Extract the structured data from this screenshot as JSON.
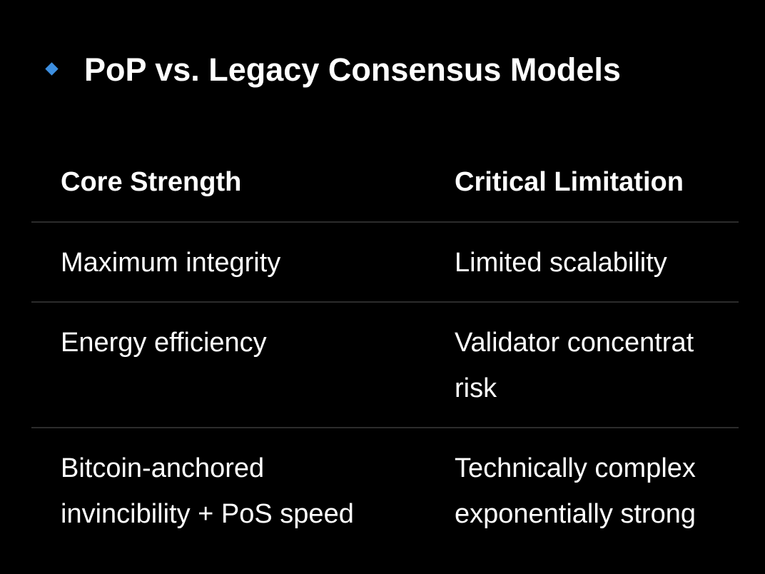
{
  "title": "PoP vs. Legacy Consensus Models",
  "table": {
    "header": [
      "Core Strength",
      "Critical Limitation"
    ],
    "rows": [
      [
        [
          "Maximum integrity"
        ],
        [
          "Limited scalability"
        ]
      ],
      [
        [
          "Energy efficiency"
        ],
        [
          "Validator concentrat",
          "risk"
        ]
      ],
      [
        [
          "Bitcoin-anchored",
          "invincibility + PoS speed"
        ],
        [
          "Technically complex",
          "exponentially strong"
        ]
      ]
    ]
  }
}
